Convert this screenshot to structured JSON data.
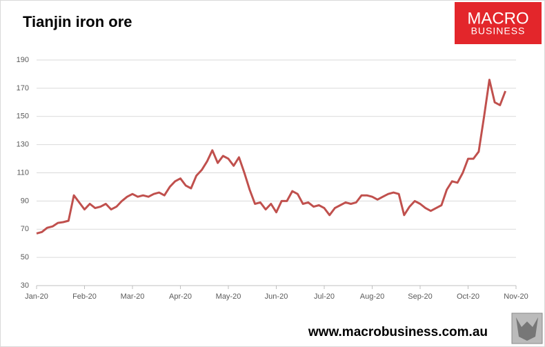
{
  "chart_data": {
    "type": "line",
    "title": "Tianjin iron ore",
    "logo": [
      "MACRO",
      "BUSINESS"
    ],
    "source": "www.macrobusiness.com.au",
    "categories": [
      "Jan-20",
      null,
      null,
      null,
      null,
      null,
      null,
      null,
      null,
      "Feb-20",
      null,
      null,
      null,
      null,
      null,
      null,
      null,
      null,
      "Mar-20",
      null,
      null,
      null,
      null,
      null,
      null,
      null,
      null,
      "Apr-20",
      null,
      null,
      null,
      null,
      null,
      null,
      null,
      null,
      "May-20",
      null,
      null,
      null,
      null,
      null,
      null,
      null,
      null,
      "Jun-20",
      null,
      null,
      null,
      null,
      null,
      null,
      null,
      null,
      "Jul-20",
      null,
      null,
      null,
      null,
      null,
      null,
      null,
      null,
      "Aug-20",
      null,
      null,
      null,
      null,
      null,
      null,
      null,
      null,
      "Sep-20",
      null,
      null,
      null,
      null,
      null,
      null,
      null,
      null,
      "Oct-20",
      null,
      null,
      null,
      null,
      null,
      null,
      null,
      null,
      "Nov-20"
    ],
    "series": [
      {
        "name": "Tianjin iron ore",
        "color": "#c0504d",
        "values": [
          67,
          68,
          71,
          72,
          74.5,
          75,
          76,
          94,
          89,
          84,
          88,
          85,
          86,
          88,
          84,
          86,
          90,
          93,
          95,
          93,
          94,
          93,
          95,
          96,
          94,
          100,
          104,
          106,
          101,
          99,
          108,
          112,
          118,
          126,
          117,
          122,
          120,
          115,
          121,
          110,
          98,
          88,
          89,
          84,
          88,
          82,
          90,
          90,
          97,
          95,
          88,
          89,
          86,
          87,
          85,
          80,
          85,
          87,
          89,
          88,
          89,
          94,
          94,
          93,
          91,
          93,
          95,
          96,
          95,
          80,
          86,
          90,
          88,
          85,
          83,
          85,
          87,
          98,
          104,
          103,
          110,
          120,
          120,
          125,
          150,
          176,
          160,
          158,
          168,
          null,
          null
        ]
      }
    ],
    "ylim": [
      30,
      190
    ],
    "yticks": [
      30,
      50,
      70,
      90,
      110,
      130,
      150,
      170,
      190
    ],
    "grid": true
  }
}
